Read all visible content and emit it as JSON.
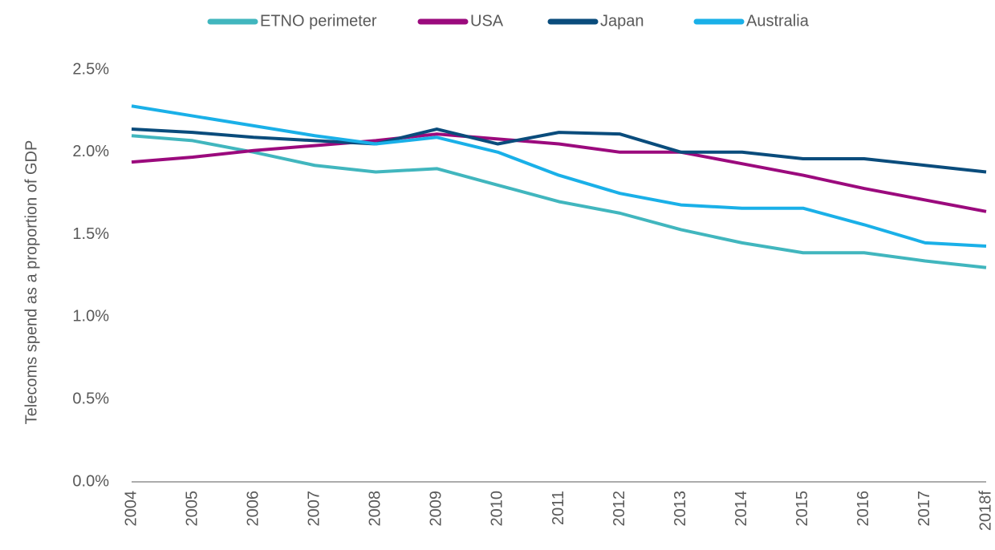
{
  "chart_data": {
    "type": "line",
    "y_label": "Telecoms spend as a proportion of GDP",
    "categories": [
      "2004",
      "2005",
      "2006",
      "2007",
      "2008",
      "2009",
      "2010",
      "2011",
      "2012",
      "2013",
      "2014",
      "2015",
      "2016",
      "2017",
      "2018f"
    ],
    "series": [
      {
        "name": "ETNO perimeter",
        "color": "#41b6be",
        "values": [
          2.1,
          2.07,
          2.0,
          1.92,
          1.88,
          1.9,
          1.8,
          1.7,
          1.63,
          1.53,
          1.45,
          1.39,
          1.39,
          1.34,
          1.3
        ]
      },
      {
        "name": "USA",
        "color": "#9b0a7d",
        "values": [
          1.94,
          1.97,
          2.01,
          2.04,
          2.07,
          2.11,
          2.08,
          2.05,
          2.0,
          2.0,
          1.93,
          1.86,
          1.78,
          1.71,
          1.64
        ]
      },
      {
        "name": "Japan",
        "color": "#0a4c7c",
        "values": [
          2.14,
          2.12,
          2.09,
          2.07,
          2.05,
          2.14,
          2.05,
          2.12,
          2.11,
          2.0,
          2.0,
          1.96,
          1.96,
          1.92,
          1.88
        ]
      },
      {
        "name": "Australia",
        "color": "#1ab0e8",
        "values": [
          2.28,
          2.22,
          2.16,
          2.1,
          2.05,
          2.09,
          2.0,
          1.86,
          1.75,
          1.68,
          1.66,
          1.66,
          1.56,
          1.45,
          1.43
        ]
      }
    ],
    "ylim": [
      0,
      2.5
    ],
    "yticks": [
      {
        "value": 0,
        "label": "0.0%"
      },
      {
        "value": 0.5,
        "label": "0.5%"
      },
      {
        "value": 1.0,
        "label": "1.0%"
      },
      {
        "value": 1.5,
        "label": "1.5%"
      },
      {
        "value": 2.0,
        "label": "2.0%"
      },
      {
        "value": 2.5,
        "label": "2.5%"
      }
    ],
    "grid": false,
    "legend": "top"
  }
}
